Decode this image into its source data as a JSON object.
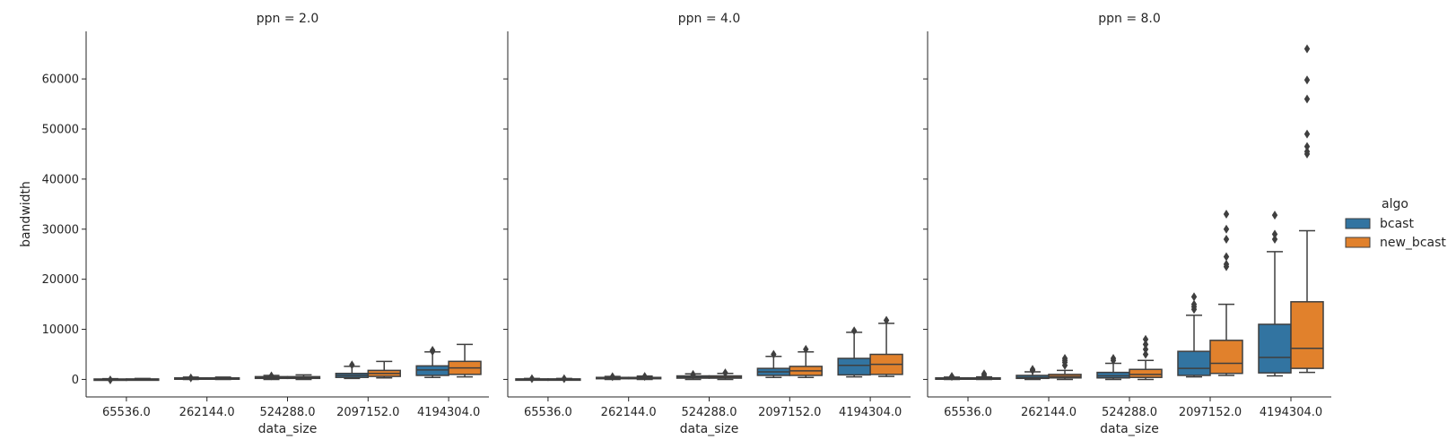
{
  "chart_data": {
    "type": "box",
    "facet_titles": [
      "ppn = 2.0",
      "ppn = 4.0",
      "ppn = 8.0"
    ],
    "xlabel": "data_size",
    "ylabel": "bandwidth",
    "categories": [
      "65536.0",
      "262144.0",
      "524288.0",
      "2097152.0",
      "4194304.0"
    ],
    "yticks": [
      "0",
      "10000",
      "20000",
      "30000",
      "40000",
      "50000",
      "60000"
    ],
    "ylim": [
      -3500,
      69500
    ],
    "legend": {
      "title": "algo",
      "placement": "right",
      "entries": [
        {
          "name": "bcast",
          "color": "#3274a1"
        },
        {
          "name": "new_bcast",
          "color": "#e1812c"
        }
      ]
    },
    "panels": [
      {
        "title": "ppn = 2.0",
        "series": [
          {
            "name": "bcast",
            "boxes": [
              {
                "min": 0,
                "q1": 20,
                "median": 40,
                "q3": 80,
                "max": 150,
                "outliers": [
                  -100
                ]
              },
              {
                "min": 0,
                "q1": 100,
                "median": 200,
                "q3": 300,
                "max": 450,
                "outliers": [
                  300
                ]
              },
              {
                "min": 0,
                "q1": 200,
                "median": 350,
                "q3": 550,
                "max": 800,
                "outliers": [
                  700
                ]
              },
              {
                "min": 200,
                "q1": 400,
                "median": 800,
                "q3": 1200,
                "max": 2600,
                "outliers": [
                  2900
                ]
              },
              {
                "min": 400,
                "q1": 800,
                "median": 1900,
                "q3": 2700,
                "max": 5500,
                "outliers": [
                  5800,
                  5600
                ]
              }
            ]
          },
          {
            "name": "new_bcast",
            "boxes": [
              {
                "min": 0,
                "q1": 20,
                "median": 50,
                "q3": 90,
                "max": 200,
                "outliers": []
              },
              {
                "min": 0,
                "q1": 100,
                "median": 200,
                "q3": 300,
                "max": 450,
                "outliers": []
              },
              {
                "min": 0,
                "q1": 200,
                "median": 350,
                "q3": 550,
                "max": 900,
                "outliers": []
              },
              {
                "min": 300,
                "q1": 600,
                "median": 1200,
                "q3": 1800,
                "max": 3600,
                "outliers": []
              },
              {
                "min": 500,
                "q1": 1000,
                "median": 2300,
                "q3": 3600,
                "max": 7000,
                "outliers": []
              }
            ]
          }
        ]
      },
      {
        "title": "ppn = 4.0",
        "series": [
          {
            "name": "bcast",
            "boxes": [
              {
                "min": 0,
                "q1": 20,
                "median": 50,
                "q3": 100,
                "max": 200,
                "outliers": [
                  150
                ]
              },
              {
                "min": 0,
                "q1": 150,
                "median": 250,
                "q3": 400,
                "max": 600,
                "outliers": [
                  550
                ]
              },
              {
                "min": 0,
                "q1": 250,
                "median": 450,
                "q3": 700,
                "max": 1100,
                "outliers": [
                  1000
                ]
              },
              {
                "min": 400,
                "q1": 800,
                "median": 1500,
                "q3": 2200,
                "max": 4600,
                "outliers": [
                  5000
                ]
              },
              {
                "min": 500,
                "q1": 900,
                "median": 2800,
                "q3": 4200,
                "max": 9400,
                "outliers": [
                  9700
                ]
              }
            ]
          },
          {
            "name": "new_bcast",
            "boxes": [
              {
                "min": 0,
                "q1": 20,
                "median": 50,
                "q3": 100,
                "max": 200,
                "outliers": [
                  150
                ]
              },
              {
                "min": 0,
                "q1": 150,
                "median": 250,
                "q3": 400,
                "max": 650,
                "outliers": [
                  600
                ]
              },
              {
                "min": 0,
                "q1": 250,
                "median": 450,
                "q3": 700,
                "max": 1200,
                "outliers": [
                  1300
                ]
              },
              {
                "min": 400,
                "q1": 800,
                "median": 1700,
                "q3": 2600,
                "max": 5500,
                "outliers": [
                  6000
                ]
              },
              {
                "min": 600,
                "q1": 1000,
                "median": 3000,
                "q3": 5000,
                "max": 11200,
                "outliers": [
                  11800
                ]
              }
            ]
          }
        ]
      },
      {
        "title": "ppn = 8.0",
        "series": [
          {
            "name": "bcast",
            "boxes": [
              {
                "min": 0,
                "q1": 100,
                "median": 200,
                "q3": 300,
                "max": 450,
                "outliers": [
                  600
                ]
              },
              {
                "min": 0,
                "q1": 200,
                "median": 400,
                "q3": 800,
                "max": 1500,
                "outliers": [
                  1800,
                  2000
                ]
              },
              {
                "min": 0,
                "q1": 300,
                "median": 700,
                "q3": 1400,
                "max": 3200,
                "outliers": [
                  3800,
                  4200
                ]
              },
              {
                "min": 500,
                "q1": 800,
                "median": 2200,
                "q3": 5600,
                "max": 12800,
                "outliers": [
                  14000,
                  14500,
                  15000,
                  16500
                ]
              },
              {
                "min": 700,
                "q1": 1300,
                "median": 4400,
                "q3": 11000,
                "max": 25500,
                "outliers": [
                  28000,
                  29000,
                  32800
                ]
              }
            ]
          },
          {
            "name": "new_bcast",
            "boxes": [
              {
                "min": 0,
                "q1": 100,
                "median": 200,
                "q3": 300,
                "max": 500,
                "outliers": [
                  800,
                  1100
                ]
              },
              {
                "min": 0,
                "q1": 300,
                "median": 600,
                "q3": 1000,
                "max": 1800,
                "outliers": [
                  2800,
                  3400,
                  3800,
                  4200
                ]
              },
              {
                "min": 0,
                "q1": 400,
                "median": 1000,
                "q3": 2000,
                "max": 3800,
                "outliers": [
                  5000,
                  6000,
                  7000,
                  8000
                ]
              },
              {
                "min": 800,
                "q1": 1200,
                "median": 3200,
                "q3": 7800,
                "max": 15000,
                "outliers": [
                  22500,
                  23000,
                  24500,
                  28000,
                  30000,
                  33000
                ]
              },
              {
                "min": 1400,
                "q1": 2200,
                "median": 6200,
                "q3": 15500,
                "max": 29700,
                "outliers": [
                  45000,
                  45500,
                  46500,
                  49000,
                  56000,
                  59800,
                  66000
                ]
              }
            ]
          }
        ]
      }
    ]
  }
}
